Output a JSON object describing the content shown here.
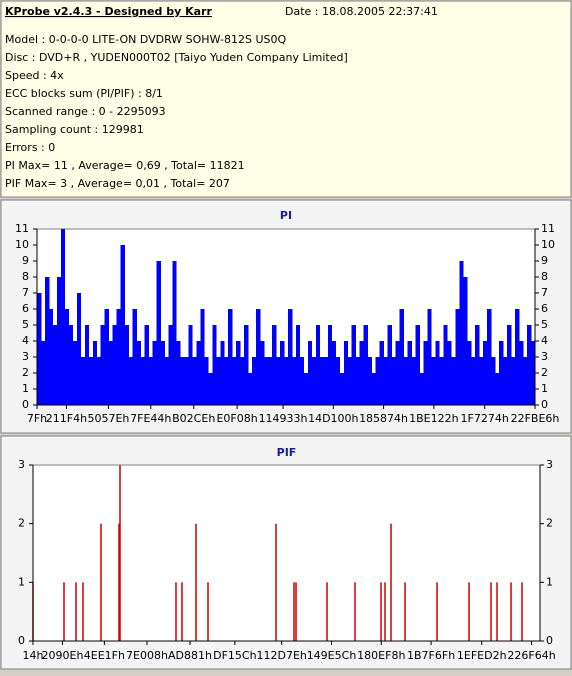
{
  "header": {
    "title": "KProbe v2.4.3 - Designed by Karr",
    "date": "Date : 18.08.2005 22:37:41",
    "lines": [
      "Model : 0-0-0-0 LITE-ON DVDRW SOHW-812S  US0Q",
      "Disc : DVD+R , YUDEN000T02 [Taiyo Yuden Company Limited]",
      "Speed : 4x",
      "ECC blocks sum (PI/PIF) : 8/1",
      "Scanned range : 0 - 2295093",
      "Sampling count : 129981",
      "Errors : 0",
      "PI Max= 11 , Average= 0,69 , Total= 11821",
      "PIF Max= 3 , Average= 0,01 , Total= 207"
    ]
  },
  "chart_data": [
    {
      "type": "bar",
      "title": "PI",
      "color": "#0000ff",
      "values": [
        7,
        4,
        8,
        6,
        5,
        8,
        11,
        6,
        5,
        4,
        7,
        3,
        5,
        3,
        4,
        3,
        5,
        6,
        4,
        5,
        6,
        10,
        5,
        3,
        6,
        4,
        3,
        5,
        3,
        4,
        9,
        4,
        3,
        5,
        9,
        4,
        3,
        3,
        5,
        3,
        4,
        6,
        3,
        2,
        5,
        3,
        4,
        3,
        6,
        3,
        4,
        3,
        5,
        2,
        3,
        6,
        4,
        3,
        3,
        5,
        3,
        4,
        3,
        6,
        3,
        5,
        3,
        2,
        4,
        3,
        5,
        3,
        3,
        5,
        4,
        3,
        2,
        4,
        3,
        5,
        3,
        4,
        5,
        3,
        2,
        3,
        4,
        3,
        5,
        3,
        4,
        6,
        3,
        4,
        3,
        5,
        2,
        4,
        6,
        3,
        4,
        3,
        5,
        4,
        3,
        6,
        9,
        8,
        4,
        3,
        5,
        3,
        4,
        6,
        3,
        2,
        4,
        3,
        5,
        3,
        6,
        4,
        3,
        5,
        4
      ],
      "xlim": [
        127,
        2292710
      ],
      "xticks": [
        {
          "value": 127,
          "label": "7Fh"
        },
        {
          "value": 135668,
          "label": "211F4h"
        },
        {
          "value": 329086,
          "label": "5057Eh"
        },
        {
          "value": 523844,
          "label": "7FE44h"
        },
        {
          "value": 721614,
          "label": "B02CEh"
        },
        {
          "value": 921352,
          "label": "E0F08h"
        },
        {
          "value": 1132851,
          "label": "114933h"
        },
        {
          "value": 1364224,
          "label": "14D100h"
        },
        {
          "value": 1595508,
          "label": "185874h"
        },
        {
          "value": 1827106,
          "label": "1BE122h"
        },
        {
          "value": 2060916,
          "label": "1F7274h"
        },
        {
          "value": 2292710,
          "label": "22FBE6h"
        }
      ],
      "ylim": [
        0,
        11
      ],
      "yticks": [
        0,
        1,
        2,
        3,
        4,
        5,
        6,
        7,
        8,
        9,
        10,
        11
      ]
    },
    {
      "type": "bar",
      "title": "PIF",
      "color": "#d00000",
      "x": [
        20,
        140337,
        194661,
        226350,
        307836,
        389322,
        393849,
        647361,
        674523,
        737901,
        792225,
        1100061,
        1181547,
        1190601,
        1330938,
        1457694,
        1575396,
        1593504,
        1620666,
        1684044,
        1828908,
        1973772,
        2073366,
        2100528,
        2163906,
        2213703
      ],
      "values": [
        1,
        1,
        1,
        1,
        2,
        2,
        3,
        1,
        1,
        2,
        1,
        2,
        1,
        1,
        1,
        1,
        1,
        1,
        2,
        1,
        1,
        1,
        1,
        1,
        1,
        1
      ],
      "xlim": [
        20,
        2295093
      ],
      "xticks": [
        {
          "value": 20,
          "label": "14h"
        },
        {
          "value": 133390,
          "label": "2090Eh"
        },
        {
          "value": 323103,
          "label": "4EE1Fh"
        },
        {
          "value": 516104,
          "label": "7E008h"
        },
        {
          "value": 710785,
          "label": "AD881h"
        },
        {
          "value": 913756,
          "label": "DF15Ch"
        },
        {
          "value": 1125758,
          "label": "112D7Eh"
        },
        {
          "value": 1351260,
          "label": "149E5Ch"
        },
        {
          "value": 1576696,
          "label": "180EF8h"
        },
        {
          "value": 1802095,
          "label": "1B7F6Fh"
        },
        {
          "value": 2031314,
          "label": "1EFED2h"
        },
        {
          "value": 2256740,
          "label": "226F64h"
        }
      ],
      "ylim": [
        0,
        3
      ],
      "yticks": [
        0,
        1,
        2,
        3
      ]
    }
  ]
}
